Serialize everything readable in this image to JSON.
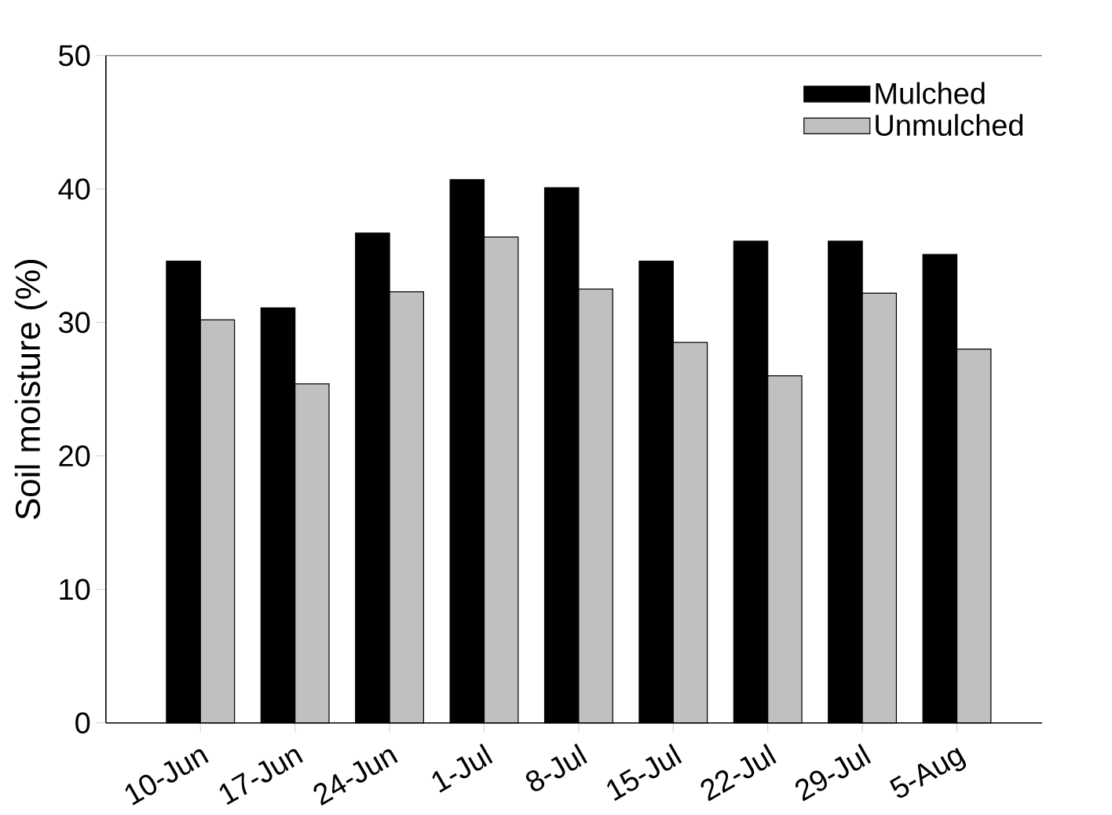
{
  "chart_data": {
    "type": "bar",
    "ylabel": "Soil moisture (%)",
    "categories": [
      "10-Jun",
      "17-Jun",
      "24-Jun",
      "1-Jul",
      "8-Jul",
      "15-Jul",
      "22-Jul",
      "29-Jul",
      "5-Aug"
    ],
    "series": [
      {
        "name": "Mulched",
        "color": "#000000",
        "values": [
          34.6,
          31.1,
          36.7,
          40.7,
          40.1,
          34.6,
          36.1,
          36.1,
          35.1
        ]
      },
      {
        "name": "Unmulched",
        "color": "#c0c0c0",
        "values": [
          30.2,
          25.4,
          32.3,
          36.4,
          32.5,
          28.5,
          26.0,
          32.2,
          28.0
        ]
      }
    ],
    "ylim": [
      0,
      50
    ],
    "yticks": [
      0,
      10,
      20,
      30,
      40,
      50
    ],
    "legend": "top right"
  }
}
